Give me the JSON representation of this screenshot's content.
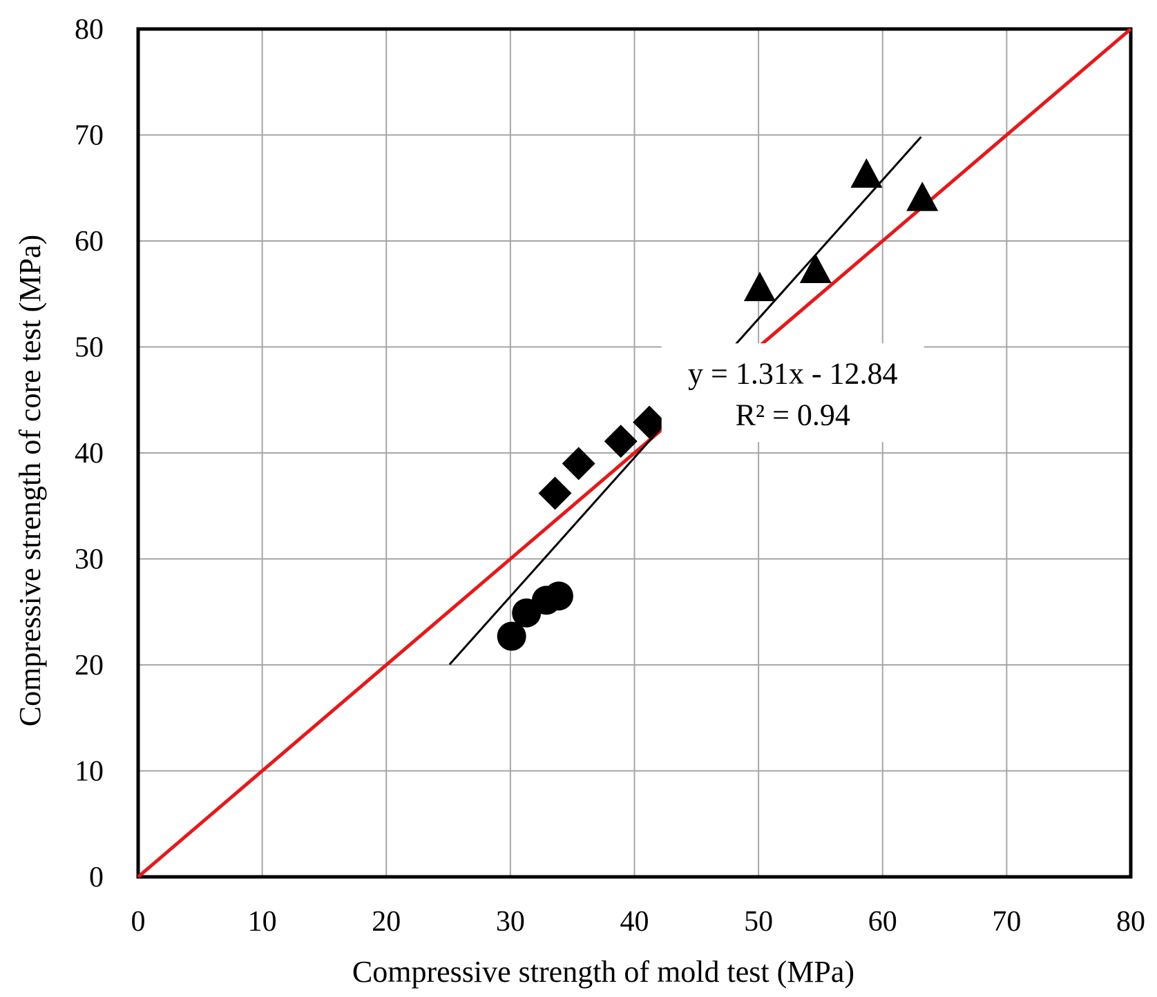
{
  "chart_data": {
    "type": "scatter",
    "title": "",
    "xlabel": "Compressive strength  of mold test (MPa)",
    "ylabel": "Compressive strength  of core test (MPa)",
    "xlim": [
      0,
      80
    ],
    "ylim": [
      0,
      80
    ],
    "xticks": [
      0,
      10,
      20,
      30,
      40,
      50,
      60,
      70,
      80
    ],
    "yticks": [
      0,
      10,
      20,
      30,
      40,
      50,
      60,
      70,
      80
    ],
    "xtick_labels": [
      "0",
      "10",
      "20",
      "30",
      "40",
      "50",
      "60",
      "70",
      "80"
    ],
    "ytick_labels": [
      "0",
      "10",
      "20",
      "30",
      "40",
      "50",
      "60",
      "70",
      "80"
    ],
    "grid": true,
    "series": [
      {
        "name": "circles",
        "marker": "circle",
        "color": "#000000",
        "points": [
          {
            "x": 30.1,
            "y": 22.7
          },
          {
            "x": 31.3,
            "y": 24.9
          },
          {
            "x": 32.9,
            "y": 26.1
          },
          {
            "x": 33.9,
            "y": 26.5
          }
        ]
      },
      {
        "name": "diamonds",
        "marker": "diamond",
        "color": "#000000",
        "points": [
          {
            "x": 33.6,
            "y": 36.2
          },
          {
            "x": 35.5,
            "y": 39.0
          },
          {
            "x": 38.9,
            "y": 41.1
          },
          {
            "x": 41.2,
            "y": 42.9
          }
        ]
      },
      {
        "name": "triangles",
        "marker": "triangle",
        "color": "#000000",
        "points": [
          {
            "x": 50.1,
            "y": 55.6
          },
          {
            "x": 54.6,
            "y": 57.3
          },
          {
            "x": 58.7,
            "y": 66.3
          },
          {
            "x": 63.2,
            "y": 64.1
          }
        ]
      }
    ],
    "lines": [
      {
        "name": "identity",
        "color": "#e31a1c",
        "x": [
          0,
          80
        ],
        "y": [
          0,
          80
        ]
      },
      {
        "name": "regression",
        "color": "#000000",
        "slope": 1.31,
        "intercept": -12.84,
        "x_range": [
          25.1,
          63.1
        ]
      }
    ],
    "annotation": {
      "equation": "y = 1.31x - 12.84",
      "r_squared": "R² = 0.94",
      "at": [
        60.0,
        42.0
      ]
    }
  }
}
